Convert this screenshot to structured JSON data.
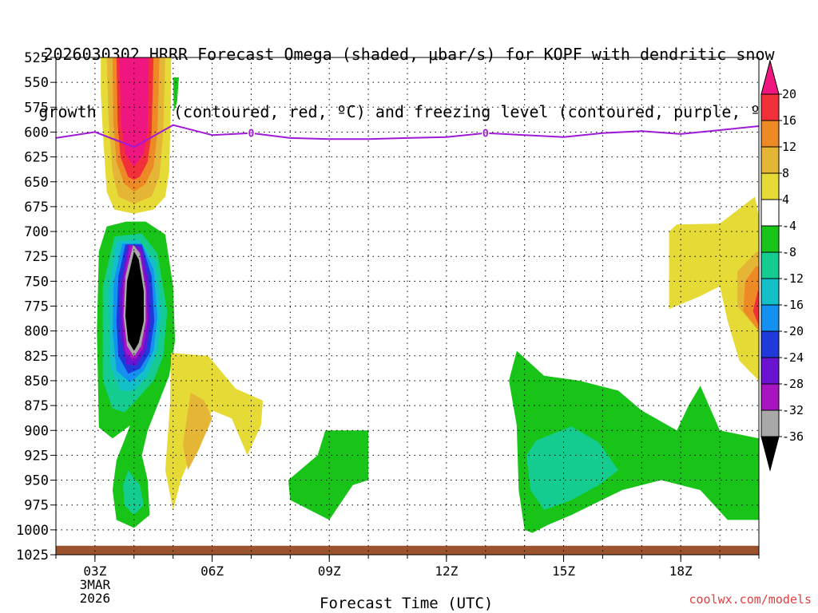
{
  "title_line1": "2026030302 HRRR Forecast Omega (shaded, μbar/s) for KOPF with dendritic snow",
  "title_line2": "growth region (contoured, red, ºC) and freezing level (contoured, purple, ºC)",
  "watermark": "coolwx.com/models",
  "chart_data": {
    "type": "heatmap",
    "title": "2026030302 HRRR Forecast Omega (shaded, μbar/s) for KOPF with dendritic snow growth region (contoured, red, ºC) and freezing level (contoured, purple, ºC)",
    "xlabel": "Forecast Time (UTC)",
    "ylabel": "Pressure (hPa)",
    "xlim": [
      2,
      20
    ],
    "ylim": [
      1025,
      525
    ],
    "x_ticks": [
      {
        "hour": 3,
        "label": "03Z"
      },
      {
        "hour": 6,
        "label": "06Z"
      },
      {
        "hour": 9,
        "label": "09Z"
      },
      {
        "hour": 12,
        "label": "12Z"
      },
      {
        "hour": 15,
        "label": "15Z"
      },
      {
        "hour": 18,
        "label": "18Z"
      }
    ],
    "x_date_label": [
      "3MAR",
      "2026"
    ],
    "y_ticks": [
      525,
      550,
      575,
      600,
      625,
      650,
      675,
      700,
      725,
      750,
      775,
      800,
      825,
      850,
      875,
      900,
      925,
      950,
      975,
      1000,
      1025
    ],
    "colorbar": {
      "labels": [
        "20",
        "16",
        "12",
        "8",
        "4",
        "-4",
        "-8",
        "-12",
        "-16",
        "-20",
        "-24",
        "-28",
        "-32",
        "-36"
      ],
      "colors": [
        "#f0167f",
        "#f2303a",
        "#ed8a25",
        "#e5b636",
        "#e6da36",
        "#ffffff",
        "#17c417",
        "#15cc90",
        "#14c0c8",
        "#1491f0",
        "#1e3adb",
        "#6a14d1",
        "#a914c2",
        "#a8a8a8",
        "#000000"
      ]
    },
    "freezing_level": {
      "label_value": "0",
      "points": [
        [
          2.0,
          606
        ],
        [
          3.0,
          600
        ],
        [
          4.0,
          615
        ],
        [
          5.0,
          593
        ],
        [
          6.0,
          603
        ],
        [
          7.0,
          601
        ],
        [
          8.0,
          606
        ],
        [
          9.0,
          607
        ],
        [
          10.0,
          607
        ],
        [
          11.0,
          606
        ],
        [
          12.0,
          605
        ],
        [
          13.0,
          601
        ],
        [
          14.0,
          603
        ],
        [
          15.0,
          605
        ],
        [
          16.0,
          601
        ],
        [
          17.0,
          599
        ],
        [
          18.0,
          602
        ],
        [
          19.0,
          598
        ],
        [
          20.0,
          594
        ]
      ]
    },
    "omega_regions": [
      {
        "value": 6,
        "color": "#e6da36",
        "points": [
          [
            3.15,
            525
          ],
          [
            4.95,
            525
          ],
          [
            4.95,
            560
          ],
          [
            4.9,
            640
          ],
          [
            4.8,
            665
          ],
          [
            4.5,
            678
          ],
          [
            4.0,
            682
          ],
          [
            3.5,
            678
          ],
          [
            3.3,
            660
          ],
          [
            3.2,
            600
          ],
          [
            3.15,
            560
          ]
        ]
      },
      {
        "value": 10,
        "color": "#e5b636",
        "points": [
          [
            3.3,
            525
          ],
          [
            4.8,
            525
          ],
          [
            4.75,
            600
          ],
          [
            4.65,
            645
          ],
          [
            4.45,
            665
          ],
          [
            4.0,
            672
          ],
          [
            3.6,
            665
          ],
          [
            3.45,
            640
          ],
          [
            3.35,
            590
          ]
        ]
      },
      {
        "value": 14,
        "color": "#ed8a25",
        "points": [
          [
            3.45,
            525
          ],
          [
            4.65,
            525
          ],
          [
            4.6,
            600
          ],
          [
            4.5,
            635
          ],
          [
            4.3,
            652
          ],
          [
            4.0,
            660
          ],
          [
            3.75,
            652
          ],
          [
            3.55,
            630
          ],
          [
            3.47,
            590
          ]
        ]
      },
      {
        "value": 18,
        "color": "#f2303a",
        "points": [
          [
            3.55,
            525
          ],
          [
            4.5,
            525
          ],
          [
            4.45,
            600
          ],
          [
            4.35,
            630
          ],
          [
            4.15,
            645
          ],
          [
            4.0,
            648
          ],
          [
            3.85,
            645
          ],
          [
            3.65,
            625
          ],
          [
            3.58,
            590
          ]
        ]
      },
      {
        "value": 22,
        "color": "#f0167f",
        "points": [
          [
            3.62,
            525
          ],
          [
            4.38,
            525
          ],
          [
            4.35,
            600
          ],
          [
            4.25,
            622
          ],
          [
            4.0,
            635
          ],
          [
            3.78,
            622
          ],
          [
            3.68,
            595
          ]
        ]
      },
      {
        "value": -6,
        "color": "#17c417",
        "points": [
          [
            5.0,
            545
          ],
          [
            5.15,
            545
          ],
          [
            5.1,
            570
          ],
          [
            5.02,
            580
          ]
        ]
      },
      {
        "value": -6,
        "color": "#17c417",
        "points": [
          [
            3.3,
            695
          ],
          [
            3.8,
            690
          ],
          [
            4.3,
            690
          ],
          [
            4.8,
            703
          ],
          [
            5.0,
            755
          ],
          [
            5.05,
            810
          ],
          [
            4.9,
            845
          ],
          [
            4.55,
            880
          ],
          [
            4.35,
            900
          ],
          [
            4.2,
            925
          ],
          [
            4.35,
            950
          ],
          [
            4.4,
            985
          ],
          [
            4.0,
            998
          ],
          [
            3.55,
            990
          ],
          [
            3.45,
            960
          ],
          [
            3.55,
            930
          ],
          [
            3.75,
            910
          ],
          [
            3.9,
            895
          ],
          [
            3.45,
            908
          ],
          [
            3.1,
            897
          ],
          [
            3.05,
            800
          ],
          [
            3.1,
            720
          ]
        ]
      },
      {
        "value": -10,
        "color": "#15cc90",
        "points": [
          [
            3.5,
            705
          ],
          [
            4.2,
            702
          ],
          [
            4.6,
            722
          ],
          [
            4.85,
            780
          ],
          [
            4.75,
            825
          ],
          [
            4.5,
            850
          ],
          [
            4.05,
            870
          ],
          [
            3.75,
            882
          ],
          [
            3.45,
            878
          ],
          [
            3.2,
            850
          ],
          [
            3.2,
            755
          ]
        ]
      },
      {
        "value": -14,
        "color": "#14c0c8",
        "points": [
          [
            3.55,
            710
          ],
          [
            4.1,
            708
          ],
          [
            4.55,
            730
          ],
          [
            4.7,
            780
          ],
          [
            4.6,
            820
          ],
          [
            4.35,
            845
          ],
          [
            4.0,
            860
          ],
          [
            3.65,
            860
          ],
          [
            3.4,
            835
          ],
          [
            3.35,
            760
          ]
        ]
      },
      {
        "value": -18,
        "color": "#1491f0",
        "points": [
          [
            3.7,
            712
          ],
          [
            4.2,
            712
          ],
          [
            4.5,
            738
          ],
          [
            4.6,
            785
          ],
          [
            4.5,
            820
          ],
          [
            4.25,
            840
          ],
          [
            3.9,
            852
          ],
          [
            3.55,
            840
          ],
          [
            3.45,
            800
          ],
          [
            3.48,
            750
          ]
        ]
      },
      {
        "value": -22,
        "color": "#1e3adb",
        "points": [
          [
            3.78,
            713
          ],
          [
            4.2,
            713
          ],
          [
            4.45,
            745
          ],
          [
            4.52,
            790
          ],
          [
            4.4,
            822
          ],
          [
            4.15,
            838
          ],
          [
            3.85,
            843
          ],
          [
            3.6,
            825
          ],
          [
            3.55,
            790
          ],
          [
            3.6,
            745
          ]
        ]
      },
      {
        "value": -26,
        "color": "#6a14d1",
        "points": [
          [
            3.85,
            713
          ],
          [
            4.2,
            716
          ],
          [
            4.38,
            750
          ],
          [
            4.42,
            790
          ],
          [
            4.3,
            820
          ],
          [
            4.05,
            835
          ],
          [
            3.8,
            833
          ],
          [
            3.65,
            805
          ],
          [
            3.63,
            760
          ]
        ]
      },
      {
        "value": -30,
        "color": "#a914c2",
        "points": [
          [
            3.9,
            713
          ],
          [
            4.15,
            720
          ],
          [
            4.32,
            755
          ],
          [
            4.35,
            790
          ],
          [
            4.22,
            818
          ],
          [
            4.0,
            830
          ],
          [
            3.78,
            822
          ],
          [
            3.7,
            790
          ],
          [
            3.72,
            750
          ]
        ]
      },
      {
        "value": -34,
        "color": "#a8a8a8",
        "points": [
          [
            3.98,
            713
          ],
          [
            4.15,
            722
          ],
          [
            4.3,
            760
          ],
          [
            4.3,
            790
          ],
          [
            4.18,
            815
          ],
          [
            4.0,
            826
          ],
          [
            3.82,
            815
          ],
          [
            3.73,
            785
          ],
          [
            3.78,
            745
          ]
        ]
      },
      {
        "value": -38,
        "color": "#000000",
        "points": [
          [
            4.0,
            720
          ],
          [
            4.12,
            728
          ],
          [
            4.25,
            760
          ],
          [
            4.25,
            790
          ],
          [
            4.12,
            812
          ],
          [
            4.0,
            820
          ],
          [
            3.85,
            810
          ],
          [
            3.78,
            785
          ],
          [
            3.82,
            750
          ]
        ]
      },
      {
        "value": -10,
        "color": "#15cc90",
        "points": [
          [
            3.85,
            940
          ],
          [
            4.15,
            955
          ],
          [
            4.25,
            975
          ],
          [
            4.0,
            985
          ],
          [
            3.75,
            975
          ],
          [
            3.72,
            955
          ]
        ]
      },
      {
        "value": 6,
        "color": "#e6da36",
        "points": [
          [
            4.95,
            822
          ],
          [
            5.9,
            825
          ],
          [
            6.6,
            858
          ],
          [
            7.3,
            870
          ],
          [
            7.25,
            895
          ],
          [
            6.9,
            925
          ],
          [
            6.5,
            888
          ],
          [
            6.0,
            880
          ],
          [
            5.6,
            912
          ],
          [
            5.2,
            950
          ],
          [
            5.0,
            980
          ],
          [
            4.8,
            940
          ],
          [
            4.92,
            875
          ]
        ]
      },
      {
        "value": 10,
        "color": "#e5b636",
        "points": [
          [
            5.45,
            862
          ],
          [
            5.8,
            870
          ],
          [
            6.0,
            888
          ],
          [
            5.65,
            920
          ],
          [
            5.38,
            940
          ],
          [
            5.25,
            915
          ]
        ]
      },
      {
        "value": -6,
        "color": "#17c417",
        "points": [
          [
            8.9,
            900
          ],
          [
            10.0,
            900
          ],
          [
            10.0,
            950
          ],
          [
            9.6,
            955
          ],
          [
            9.0,
            990
          ],
          [
            8.0,
            970
          ],
          [
            7.95,
            950
          ],
          [
            8.7,
            925
          ]
        ]
      },
      {
        "value": -6,
        "color": "#17c417",
        "points": [
          [
            13.8,
            820
          ],
          [
            14.5,
            845
          ],
          [
            15.4,
            850
          ],
          [
            16.4,
            860
          ],
          [
            17.0,
            880
          ],
          [
            17.9,
            900
          ],
          [
            18.2,
            875
          ],
          [
            18.5,
            855
          ],
          [
            19.0,
            900
          ],
          [
            20.0,
            908
          ],
          [
            20.0,
            990
          ],
          [
            19.2,
            990
          ],
          [
            18.5,
            960
          ],
          [
            17.5,
            950
          ],
          [
            16.5,
            960
          ],
          [
            15.2,
            985
          ],
          [
            14.6,
            995
          ],
          [
            14.2,
            1003
          ],
          [
            14.0,
            1000
          ],
          [
            13.85,
            960
          ],
          [
            13.8,
            895
          ],
          [
            13.6,
            850
          ]
        ]
      },
      {
        "value": -10,
        "color": "#15cc90",
        "points": [
          [
            14.3,
            910
          ],
          [
            15.2,
            896
          ],
          [
            15.9,
            912
          ],
          [
            16.4,
            940
          ],
          [
            15.9,
            955
          ],
          [
            15.2,
            970
          ],
          [
            14.5,
            980
          ],
          [
            14.15,
            960
          ],
          [
            14.05,
            925
          ]
        ]
      },
      {
        "value": 6,
        "color": "#e6da36",
        "points": [
          [
            17.9,
            693
          ],
          [
            19.0,
            692
          ],
          [
            19.9,
            665
          ],
          [
            20.0,
            685
          ],
          [
            20.0,
            850
          ],
          [
            19.5,
            830
          ],
          [
            19.2,
            790
          ],
          [
            19.0,
            755
          ],
          [
            18.5,
            765
          ],
          [
            17.7,
            778
          ],
          [
            17.7,
            700
          ]
        ]
      },
      {
        "value": 10,
        "color": "#e5b636",
        "points": [
          [
            19.95,
            720
          ],
          [
            20.0,
            720
          ],
          [
            20.0,
            800
          ],
          [
            19.45,
            775
          ],
          [
            19.45,
            740
          ]
        ]
      },
      {
        "value": 14,
        "color": "#ed8a25",
        "points": [
          [
            19.92,
            735
          ],
          [
            20.0,
            735
          ],
          [
            20.0,
            800
          ],
          [
            19.6,
            780
          ],
          [
            19.65,
            750
          ]
        ]
      },
      {
        "value": 18,
        "color": "#f2303a",
        "points": [
          [
            19.97,
            760
          ],
          [
            20.0,
            760
          ],
          [
            20.0,
            795
          ],
          [
            19.85,
            780
          ]
        ]
      }
    ],
    "ground_layer": {
      "from_hpa": 1016,
      "to_hpa": 1025,
      "color": "#9a532c"
    }
  }
}
